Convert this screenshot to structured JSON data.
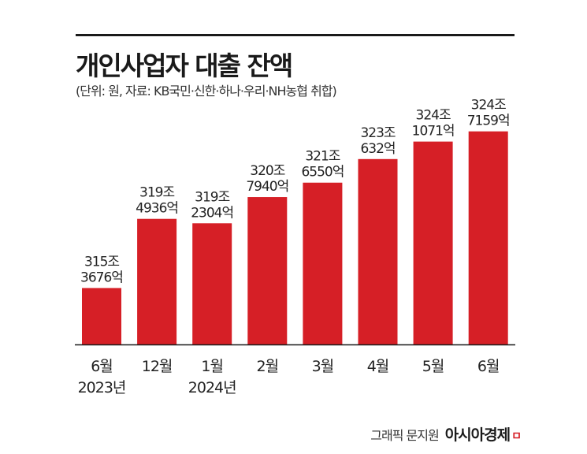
{
  "header": {
    "title": "개인사업자 대출 잔액",
    "subtitle": "(단위: 원, 자료: KB국민·신한·하나·우리·NH농협 취합)"
  },
  "footer": {
    "credit": "그래픽 문지원",
    "brand": "아시아경제",
    "brand_mark": "ㅁ"
  },
  "colors": {
    "bar": "#d61f26",
    "axis": "#1a1a1a",
    "text": "#222222"
  },
  "chart_data": {
    "type": "bar",
    "title": "개인사업자 대출 잔액",
    "subtitle": "(단위: 원, 자료: KB국민·신한·하나·우리·NH농협 취합)",
    "categories": [
      [
        "6월",
        "2023년"
      ],
      [
        "12월"
      ],
      [
        "1월",
        "2024년"
      ],
      [
        "2월"
      ],
      [
        "3월"
      ],
      [
        "4월"
      ],
      [
        "5월"
      ],
      [
        "6월"
      ]
    ],
    "values_won_eok": [
      3153676,
      3194936,
      3192304,
      3207940,
      3216550,
      3230632,
      3241071,
      3247159
    ],
    "data_labels": [
      [
        "315조",
        "3676억"
      ],
      [
        "319조",
        "4936억"
      ],
      [
        "319조",
        "2304억"
      ],
      [
        "320조",
        "7940억"
      ],
      [
        "321조",
        "6550억"
      ],
      [
        "323조",
        "632억"
      ],
      [
        "324조",
        "1071억"
      ],
      [
        "324조",
        "7159억"
      ]
    ],
    "ylim_won_eok": [
      3120000,
      3255000
    ],
    "grid": false,
    "legend": "none",
    "xlabel": "",
    "ylabel": ""
  }
}
